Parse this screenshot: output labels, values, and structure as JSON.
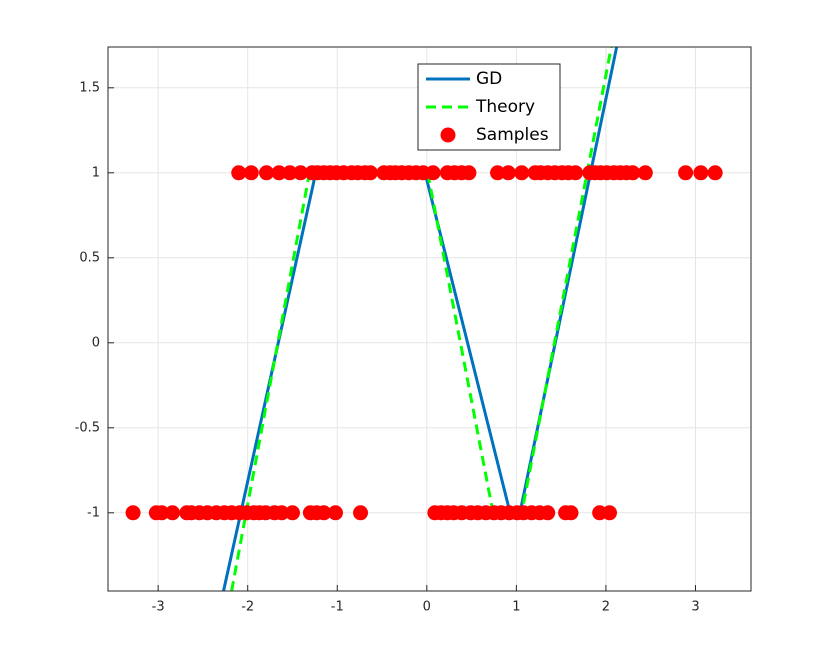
{
  "chart_data": {
    "type": "line",
    "xlim": [
      -3.56,
      3.62
    ],
    "ylim": [
      -1.46,
      1.74
    ],
    "xticks": [
      -3,
      -2,
      -1,
      0,
      1,
      2,
      3
    ],
    "yticks": [
      -1,
      -0.5,
      0,
      0.5,
      1,
      1.5
    ],
    "grid": true,
    "legend": "north",
    "series": [
      {
        "name": "GD",
        "color": "#0072bd",
        "style": "solid",
        "x": [
          -2.27,
          -1.24,
          -0.02,
          0.93,
          1.04,
          2.12
        ],
        "values": [
          -1.46,
          1,
          1,
          -1,
          -1,
          1.74
        ]
      },
      {
        "name": "Theory",
        "color": "#00ff00",
        "style": "dashed",
        "x": [
          -2.18,
          -1.31,
          0.01,
          0.74,
          1.06,
          2.06
        ],
        "values": [
          -1.46,
          1,
          1,
          -1,
          -1,
          1.74
        ]
      },
      {
        "name": "Samples",
        "color": "#ff0000",
        "style": "markers",
        "x": [
          -2.1,
          -1.96,
          -1.79,
          -1.65,
          -1.53,
          -1.41,
          -1.28,
          -1.22,
          -1.15,
          -1.08,
          -1.01,
          -0.93,
          -0.84,
          -0.77,
          -0.69,
          -0.63,
          -0.48,
          -0.41,
          -0.35,
          -0.28,
          -0.2,
          -0.12,
          -0.04,
          0.07,
          0.23,
          0.31,
          0.39,
          0.47,
          0.79,
          0.91,
          1.06,
          1.21,
          1.27,
          1.35,
          1.43,
          1.51,
          1.58,
          1.66,
          1.82,
          1.88,
          1.94,
          2.01,
          2.09,
          2.16,
          2.23,
          2.3,
          2.44,
          2.89,
          3.06,
          3.22,
          -3.28,
          -3.02,
          -2.96,
          -2.84,
          -2.68,
          -2.63,
          -2.54,
          -2.45,
          -2.35,
          -2.26,
          -2.18,
          -2.09,
          -2.01,
          -1.93,
          -1.87,
          -1.8,
          -1.7,
          -1.62,
          -1.5,
          -1.3,
          -1.23,
          -1.15,
          -1.02,
          -0.74,
          0.09,
          0.16,
          0.23,
          0.3,
          0.39,
          0.49,
          0.57,
          0.66,
          0.75,
          0.83,
          0.92,
          1.01,
          1.08,
          1.17,
          1.26,
          1.35,
          1.55,
          1.61,
          1.93,
          2.04
        ],
        "values": [
          1,
          1,
          1,
          1,
          1,
          1,
          1,
          1,
          1,
          1,
          1,
          1,
          1,
          1,
          1,
          1,
          1,
          1,
          1,
          1,
          1,
          1,
          1,
          1,
          1,
          1,
          1,
          1,
          1,
          1,
          1,
          1,
          1,
          1,
          1,
          1,
          1,
          1,
          1,
          1,
          1,
          1,
          1,
          1,
          1,
          1,
          1,
          1,
          1,
          1,
          -1,
          -1,
          -1,
          -1,
          -1,
          -1,
          -1,
          -1,
          -1,
          -1,
          -1,
          -1,
          -1,
          -1,
          -1,
          -1,
          -1,
          -1,
          -1,
          -1,
          -1,
          -1,
          -1,
          -1,
          -1,
          -1,
          -1,
          -1,
          -1,
          -1,
          -1,
          -1,
          -1,
          -1,
          -1,
          -1,
          -1,
          -1,
          -1,
          -1,
          -1,
          -1,
          -1,
          -1
        ]
      }
    ]
  }
}
